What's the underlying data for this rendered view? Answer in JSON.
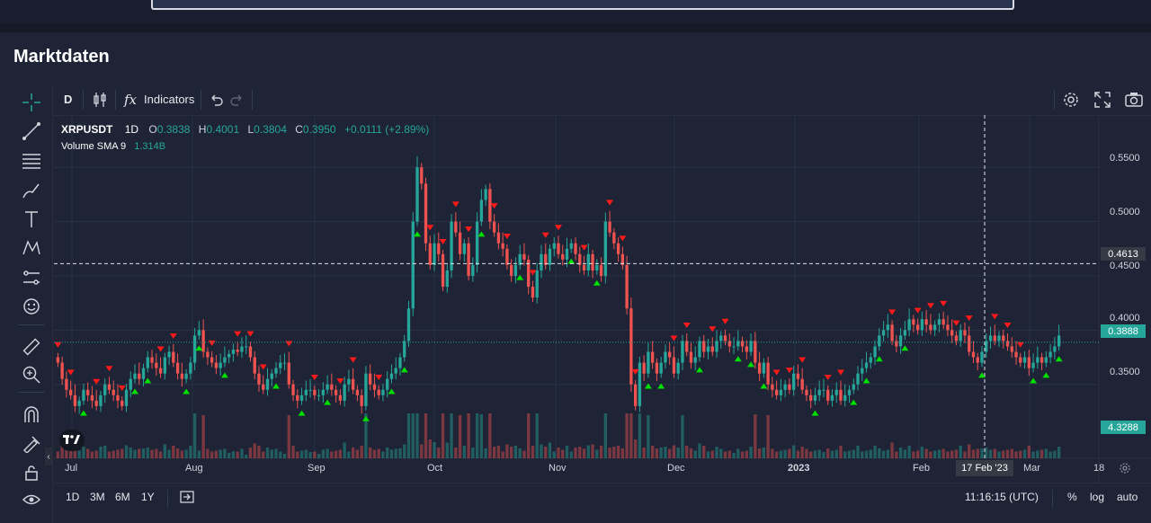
{
  "page": {
    "title": "Marktdaten"
  },
  "toolbar": {
    "interval": "D",
    "indicators_label": "Indicators",
    "fx_label": "fx"
  },
  "legend": {
    "symbol": "XRPUSDT",
    "interval": "1D",
    "o_label": "O",
    "o_value": "0.3838",
    "h_label": "H",
    "h_value": "0.4001",
    "l_label": "L",
    "l_value": "0.3804",
    "c_label": "C",
    "c_value": "0.3950",
    "change": "+0.0111 (+2.89%)",
    "volume_label": "Volume SMA 9",
    "volume_value": "1.314B"
  },
  "price_axis": {
    "labels": [
      "0.5500",
      "0.5000",
      "0.4500",
      "0.4000",
      "0.3500"
    ],
    "crosshair_price": "0.4613",
    "last_price": "0.3888",
    "volume_tag": "4.3288"
  },
  "time_axis": {
    "labels": [
      "Jul",
      "Aug",
      "Sep",
      "Oct",
      "Nov",
      "Dec",
      "2023",
      "Feb",
      "Mar",
      "18"
    ],
    "crosshair_date": "17 Feb '23"
  },
  "bottom": {
    "ranges": [
      "1D",
      "3M",
      "6M",
      "1Y"
    ],
    "clock": "11:16:15 (UTC)",
    "percent": "%",
    "log": "log",
    "auto": "auto"
  },
  "colors": {
    "bull": "#26a69a",
    "bear": "#ef5350",
    "buy_marker": "#00e000",
    "sell_marker": "#ff1a1a",
    "background": "#1e2335"
  },
  "chart_data": {
    "type": "candlestick",
    "symbol": "XRPUSDT",
    "interval": "1D",
    "ylim": [
      0.315,
      0.58
    ],
    "monthly_close_path": [
      {
        "month": "Jul",
        "close": 0.34
      },
      {
        "month": "Aug",
        "close": 0.375
      },
      {
        "month": "Sep",
        "close": 0.33
      },
      {
        "month": "Oct",
        "close": 0.49
      },
      {
        "month": "Nov",
        "close": 0.47
      },
      {
        "month": "Dec",
        "close": 0.39
      },
      {
        "month": "2023",
        "close": 0.34
      },
      {
        "month": "Feb",
        "close": 0.4
      },
      {
        "month": "Mar",
        "close": 0.37
      }
    ],
    "close": [
      0.37,
      0.355,
      0.345,
      0.34,
      0.33,
      0.335,
      0.345,
      0.34,
      0.335,
      0.33,
      0.34,
      0.35,
      0.345,
      0.34,
      0.335,
      0.33,
      0.345,
      0.355,
      0.36,
      0.355,
      0.365,
      0.375,
      0.37,
      0.365,
      0.36,
      0.375,
      0.38,
      0.37,
      0.36,
      0.355,
      0.36,
      0.37,
      0.395,
      0.4,
      0.38,
      0.375,
      0.37,
      0.365,
      0.37,
      0.375,
      0.378,
      0.382,
      0.38,
      0.385,
      0.385,
      0.375,
      0.36,
      0.35,
      0.345,
      0.355,
      0.36,
      0.365,
      0.37,
      0.37,
      0.35,
      0.34,
      0.335,
      0.34,
      0.345,
      0.345,
      0.34,
      0.34,
      0.345,
      0.35,
      0.345,
      0.34,
      0.335,
      0.35,
      0.355,
      0.345,
      0.34,
      0.33,
      0.36,
      0.35,
      0.345,
      0.34,
      0.345,
      0.355,
      0.36,
      0.365,
      0.375,
      0.39,
      0.42,
      0.5,
      0.55,
      0.535,
      0.48,
      0.46,
      0.48,
      0.47,
      0.44,
      0.455,
      0.5,
      0.49,
      0.47,
      0.48,
      0.45,
      0.46,
      0.5,
      0.52,
      0.53,
      0.5,
      0.49,
      0.48,
      0.475,
      0.46,
      0.45,
      0.46,
      0.47,
      0.465,
      0.44,
      0.43,
      0.455,
      0.47,
      0.46,
      0.475,
      0.48,
      0.47,
      0.465,
      0.475,
      0.48,
      0.47,
      0.46,
      0.455,
      0.47,
      0.455,
      0.46,
      0.45,
      0.5,
      0.49,
      0.48,
      0.47,
      0.46,
      0.42,
      0.35,
      0.33,
      0.37,
      0.36,
      0.38,
      0.37,
      0.36,
      0.37,
      0.38,
      0.375,
      0.36,
      0.37,
      0.39,
      0.38,
      0.37,
      0.375,
      0.39,
      0.38,
      0.385,
      0.38,
      0.39,
      0.395,
      0.39,
      0.385,
      0.385,
      0.39,
      0.385,
      0.38,
      0.39,
      0.37,
      0.36,
      0.37,
      0.35,
      0.345,
      0.34,
      0.345,
      0.35,
      0.345,
      0.36,
      0.355,
      0.345,
      0.34,
      0.335,
      0.34,
      0.345,
      0.345,
      0.335,
      0.34,
      0.345,
      0.335,
      0.34,
      0.345,
      0.35,
      0.36,
      0.365,
      0.37,
      0.375,
      0.385,
      0.395,
      0.4,
      0.405,
      0.39,
      0.385,
      0.395,
      0.4,
      0.41,
      0.405,
      0.4,
      0.41,
      0.405,
      0.4,
      0.405,
      0.41,
      0.405,
      0.4,
      0.395,
      0.39,
      0.4,
      0.395,
      0.38,
      0.375,
      0.37,
      0.38,
      0.39,
      0.395,
      0.39,
      0.395,
      0.39,
      0.385,
      0.38,
      0.375,
      0.37,
      0.375,
      0.365,
      0.37,
      0.375,
      0.37,
      0.375,
      0.38,
      0.385,
      0.395
    ]
  }
}
